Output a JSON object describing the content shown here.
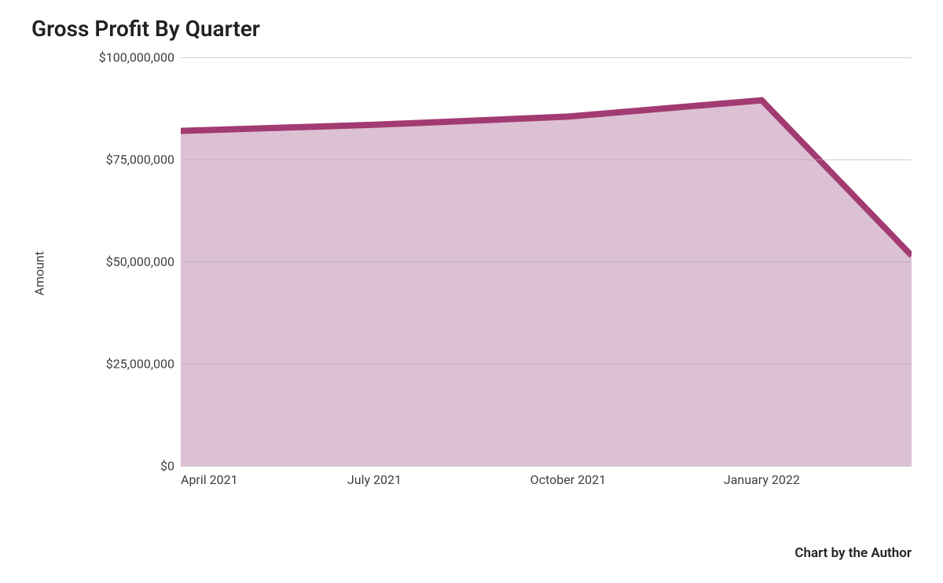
{
  "chart": {
    "type": "area",
    "title": "Gross Profit By Quarter",
    "title_fontsize": 28,
    "title_weight": 600,
    "title_color": "#202124",
    "y_axis_label": "Amount",
    "y_axis_label_fontsize": 16,
    "background_color": "#ffffff",
    "grid_color": "#b8a8b0",
    "line_color": "#a23b72",
    "line_width": 8,
    "fill_color": "#dcc0d3",
    "fill_opacity": 1.0,
    "tick_label_color": "#3c4043",
    "tick_label_fontsize": 16,
    "ylim": [
      0,
      100000000
    ],
    "y_ticks": [
      {
        "value": 0,
        "label": "$0"
      },
      {
        "value": 25000000,
        "label": "$25,000,000"
      },
      {
        "value": 50000000,
        "label": "$50,000,000"
      },
      {
        "value": 75000000,
        "label": "$75,000,000"
      },
      {
        "value": 100000000,
        "label": "$100,000,000"
      }
    ],
    "x_ticks": [
      {
        "position": 0.0,
        "label": "April 2021"
      },
      {
        "position": 0.265,
        "label": "July 2021"
      },
      {
        "position": 0.53,
        "label": "October 2021"
      },
      {
        "position": 0.795,
        "label": "January 2022"
      }
    ],
    "data_points": [
      {
        "x": 0.0,
        "y": 82000000
      },
      {
        "x": 0.265,
        "y": 83500000
      },
      {
        "x": 0.53,
        "y": 85500000
      },
      {
        "x": 0.795,
        "y": 89500000
      },
      {
        "x": 1.0,
        "y": 51500000
      }
    ],
    "attribution": "Chart by the Author",
    "attribution_fontsize": 17,
    "attribution_weight": 600,
    "attribution_color": "#202124"
  }
}
